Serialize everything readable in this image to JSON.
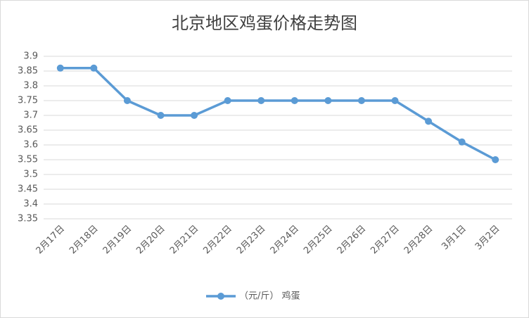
{
  "chart_data": {
    "type": "line",
    "title": "北京地区鸡蛋价格走势图",
    "categories": [
      "2月17日",
      "2月18日",
      "2月19日",
      "2月20日",
      "2月21日",
      "2月22日",
      "2月23日",
      "2月24日",
      "2月25日",
      "2月26日",
      "2月27日",
      "2月28日",
      "3月1日",
      "3月2日"
    ],
    "series": [
      {
        "name": "（元/斤） 鸡蛋",
        "color": "#5b9bd5",
        "values": [
          3.86,
          3.86,
          3.75,
          3.7,
          3.7,
          3.75,
          3.75,
          3.75,
          3.75,
          3.75,
          3.75,
          3.68,
          3.61,
          3.55
        ]
      }
    ],
    "ylim": [
      3.35,
      3.9
    ],
    "yticks": [
      3.35,
      3.4,
      3.45,
      3.5,
      3.55,
      3.6,
      3.65,
      3.7,
      3.75,
      3.8,
      3.85,
      3.9
    ],
    "grid": true,
    "legend": "bottom"
  }
}
